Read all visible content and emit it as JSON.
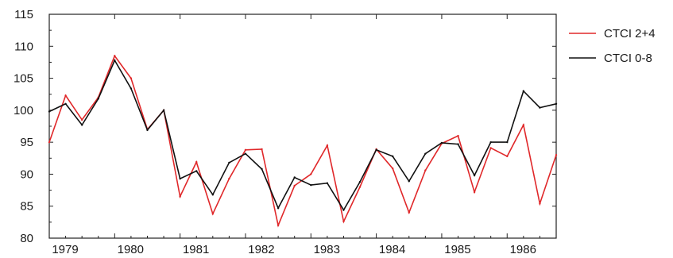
{
  "chart_data": {
    "type": "line",
    "title": "",
    "xlabel": "",
    "ylabel": "",
    "ylim": [
      80,
      115
    ],
    "yticks": [
      80,
      85,
      90,
      95,
      100,
      105,
      110,
      115
    ],
    "xlim": [
      1979.0,
      1986.75
    ],
    "xticks": [
      1979,
      1980,
      1981,
      1982,
      1983,
      1984,
      1985,
      1986
    ],
    "grid": false,
    "legend_position": "right",
    "x": [
      1979.0,
      1979.25,
      1979.5,
      1979.75,
      1980.0,
      1980.25,
      1980.5,
      1980.75,
      1981.0,
      1981.25,
      1981.5,
      1981.75,
      1982.0,
      1982.25,
      1982.5,
      1982.75,
      1983.0,
      1983.25,
      1983.5,
      1983.75,
      1984.0,
      1984.25,
      1984.5,
      1984.75,
      1985.0,
      1985.25,
      1985.5,
      1985.75,
      1986.0,
      1986.25,
      1986.5,
      1986.75
    ],
    "series": [
      {
        "name": "CTCI 2+4",
        "color": "#e0282a",
        "values": [
          95.0,
          102.3,
          98.5,
          102.0,
          108.5,
          105.0,
          97.0,
          100.0,
          86.5,
          91.9,
          83.8,
          89.3,
          93.8,
          93.9,
          82.0,
          88.2,
          90.0,
          94.5,
          82.6,
          88.0,
          93.9,
          90.9,
          84.0,
          90.6,
          94.8,
          96.0,
          87.2,
          94.1,
          92.8,
          97.7,
          85.4,
          93.0
        ]
      },
      {
        "name": "CTCI 0-8",
        "color": "#111111",
        "values": [
          99.8,
          101.0,
          97.7,
          101.8,
          107.8,
          103.4,
          96.9,
          100.0,
          89.3,
          90.5,
          86.8,
          91.8,
          93.2,
          90.8,
          84.7,
          89.5,
          88.3,
          88.6,
          84.4,
          88.8,
          93.8,
          92.8,
          88.9,
          93.2,
          94.9,
          94.7,
          89.8,
          95.0,
          95.0,
          103.0,
          100.4,
          101.0
        ]
      }
    ]
  }
}
